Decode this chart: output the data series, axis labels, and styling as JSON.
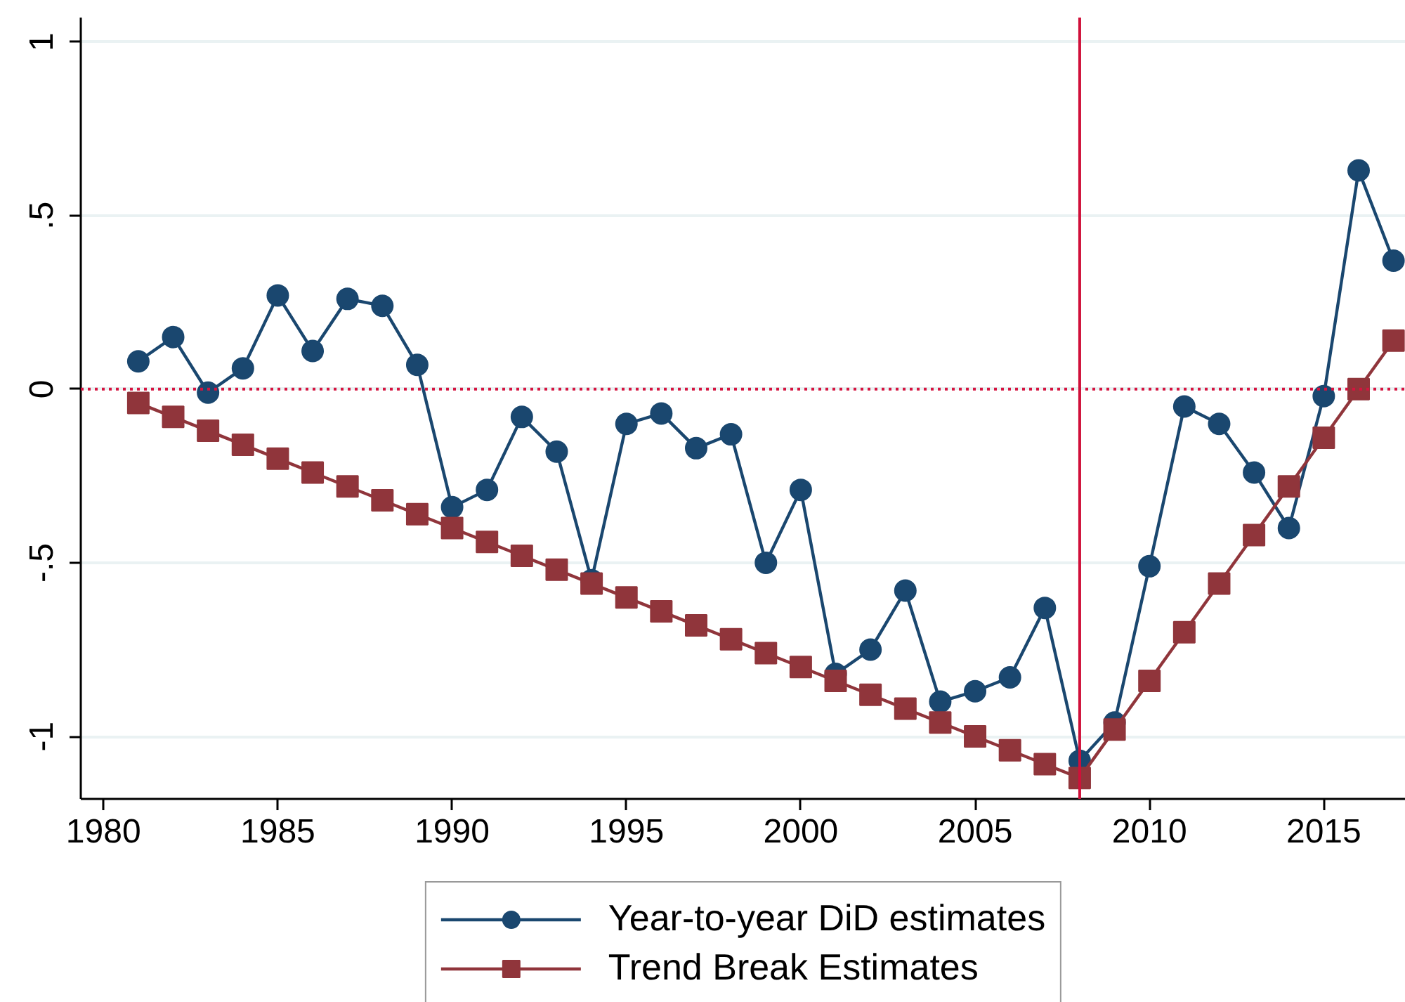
{
  "chart_data": {
    "type": "line",
    "x": [
      1981,
      1982,
      1983,
      1984,
      1985,
      1986,
      1987,
      1988,
      1989,
      1990,
      1991,
      1992,
      1993,
      1994,
      1995,
      1996,
      1997,
      1998,
      1999,
      2000,
      2001,
      2002,
      2003,
      2004,
      2005,
      2006,
      2007,
      2008,
      2009,
      2010,
      2011,
      2012,
      2013,
      2014,
      2015,
      2016,
      2017
    ],
    "series": [
      {
        "name": "Year-to-year DiD estimates",
        "color": "#1a476f",
        "marker": "circle",
        "values": [
          0.08,
          0.15,
          -0.01,
          0.06,
          0.27,
          0.11,
          0.26,
          0.24,
          0.07,
          -0.34,
          -0.29,
          -0.08,
          -0.18,
          -0.55,
          -0.1,
          -0.07,
          -0.17,
          -0.13,
          -0.5,
          -0.29,
          -0.82,
          -0.75,
          -0.58,
          -0.9,
          -0.87,
          -0.83,
          -0.63,
          -1.07,
          -0.96,
          -0.51,
          -0.05,
          -0.1,
          -0.24,
          -0.4,
          -0.02,
          0.63,
          0.37
        ]
      },
      {
        "name": "Trend Break Estimates",
        "color": "#90353b",
        "marker": "square",
        "values": [
          -0.04,
          -0.08,
          -0.12,
          -0.16,
          -0.2,
          -0.24,
          -0.28,
          -0.32,
          -0.36,
          -0.4,
          -0.44,
          -0.48,
          -0.52,
          -0.56,
          -0.6,
          -0.64,
          -0.68,
          -0.72,
          -0.76,
          -0.8,
          -0.84,
          -0.88,
          -0.92,
          -0.96,
          -1.0,
          -1.04,
          -1.08,
          -1.12,
          -0.98,
          -0.84,
          -0.7,
          -0.56,
          -0.42,
          -0.28,
          -0.14,
          0.0,
          0.14
        ]
      }
    ],
    "xlim": [
      1979.35,
      2017.35
    ],
    "ylim": [
      -1.18,
      1.07
    ],
    "xticks": [
      1980,
      1985,
      1990,
      1995,
      2000,
      2005,
      2010,
      2015
    ],
    "yticks": [
      1,
      {
        "value": 0.5,
        "label": ".5"
      },
      0,
      {
        "value": -0.5,
        "label": "-.5"
      },
      -1
    ],
    "grid": "y",
    "legend": "bottom",
    "line_style": "solid",
    "ref_lines": [
      {
        "axis": "y",
        "value": 0,
        "color": "#d6133f",
        "line_style": "dotted"
      },
      {
        "axis": "x",
        "value": 2008,
        "color": "#d0103a",
        "line_style": "solid"
      }
    ]
  }
}
